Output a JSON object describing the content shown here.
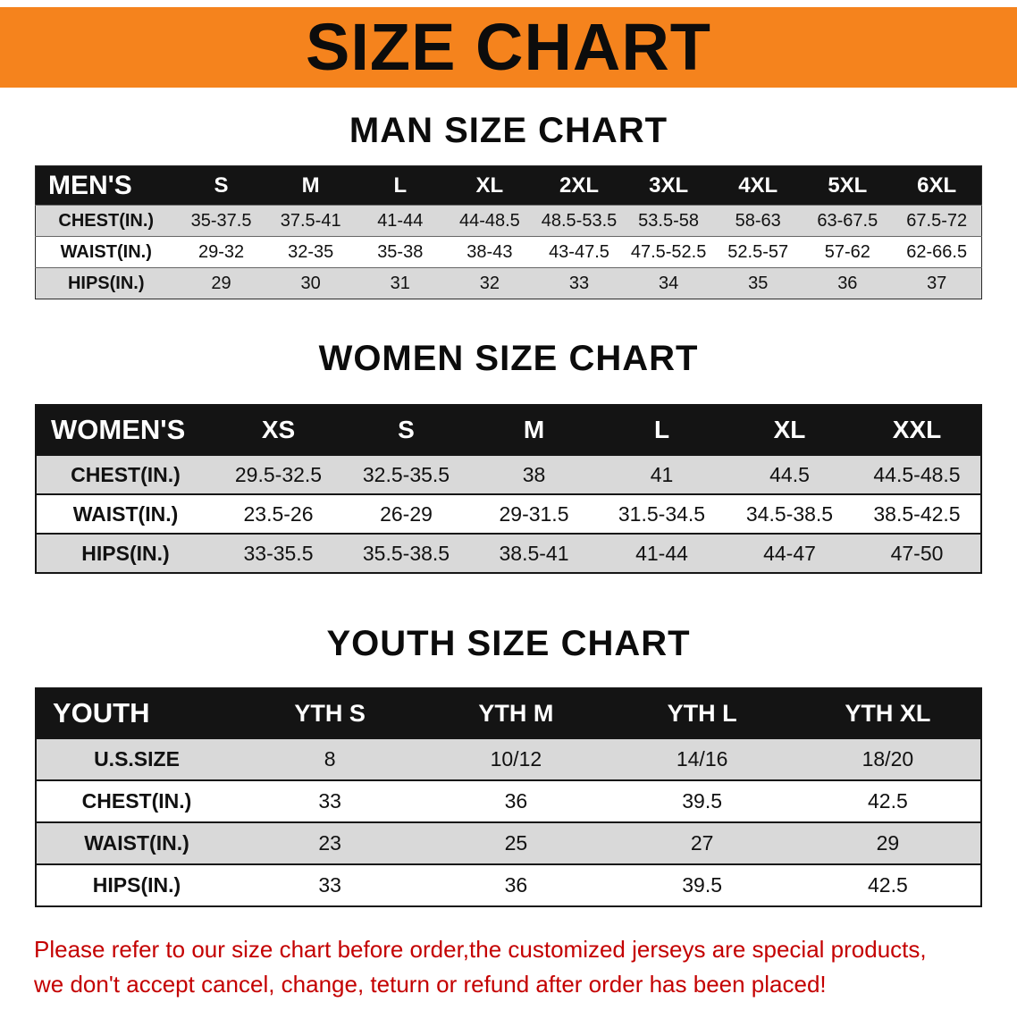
{
  "banner": {
    "title": "SIZE CHART"
  },
  "sections": [
    {
      "id": "men",
      "heading": "MAN SIZE CHART",
      "table": {
        "corner": "MEN'S",
        "columns": [
          "S",
          "M",
          "L",
          "XL",
          "2XL",
          "3XL",
          "4XL",
          "5XL",
          "6XL"
        ],
        "rows": [
          {
            "label": "CHEST(IN.)",
            "values": [
              "35-37.5",
              "37.5-41",
              "41-44",
              "44-48.5",
              "48.5-53.5",
              "53.5-58",
              "58-63",
              "63-67.5",
              "67.5-72"
            ]
          },
          {
            "label": "WAIST(IN.)",
            "values": [
              "29-32",
              "32-35",
              "35-38",
              "38-43",
              "43-47.5",
              "47.5-52.5",
              "52.5-57",
              "57-62",
              "62-66.5"
            ]
          },
          {
            "label": "HIPS(IN.)",
            "values": [
              "29",
              "30",
              "31",
              "32",
              "33",
              "34",
              "35",
              "36",
              "37"
            ]
          }
        ]
      }
    },
    {
      "id": "women",
      "heading": "WOMEN SIZE CHART",
      "table": {
        "corner": "WOMEN'S",
        "columns": [
          "XS",
          "S",
          "M",
          "L",
          "XL",
          "XXL"
        ],
        "rows": [
          {
            "label": "CHEST(IN.)",
            "values": [
              "29.5-32.5",
              "32.5-35.5",
              "38",
              "41",
              "44.5",
              "44.5-48.5"
            ]
          },
          {
            "label": "WAIST(IN.)",
            "values": [
              "23.5-26",
              "26-29",
              "29-31.5",
              "31.5-34.5",
              "34.5-38.5",
              "38.5-42.5"
            ]
          },
          {
            "label": "HIPS(IN.)",
            "values": [
              "33-35.5",
              "35.5-38.5",
              "38.5-41",
              "41-44",
              "44-47",
              "47-50"
            ]
          }
        ]
      }
    },
    {
      "id": "youth",
      "heading": "YOUTH SIZE CHART",
      "table": {
        "corner": "YOUTH",
        "columns": [
          "YTH S",
          "YTH M",
          "YTH L",
          "YTH XL"
        ],
        "rows": [
          {
            "label": "U.S.SIZE",
            "values": [
              "8",
              "10/12",
              "14/16",
              "18/20"
            ]
          },
          {
            "label": "CHEST(IN.)",
            "values": [
              "33",
              "36",
              "39.5",
              "42.5"
            ]
          },
          {
            "label": "WAIST(IN.)",
            "values": [
              "23",
              "25",
              "27",
              "29"
            ]
          },
          {
            "label": "HIPS(IN.)",
            "values": [
              "33",
              "36",
              "39.5",
              "42.5"
            ]
          }
        ]
      }
    }
  ],
  "disclaimer": {
    "line1": "Please refer to our size chart before order,the customized jerseys are special products,",
    "line2": "we don't accept cancel, change, teturn or refund after order has been placed!",
    "color": "#c40000"
  },
  "colors": {
    "banner_background": "#f5831d",
    "header_background": "#141414",
    "row_shaded": "#d9d9d9"
  }
}
